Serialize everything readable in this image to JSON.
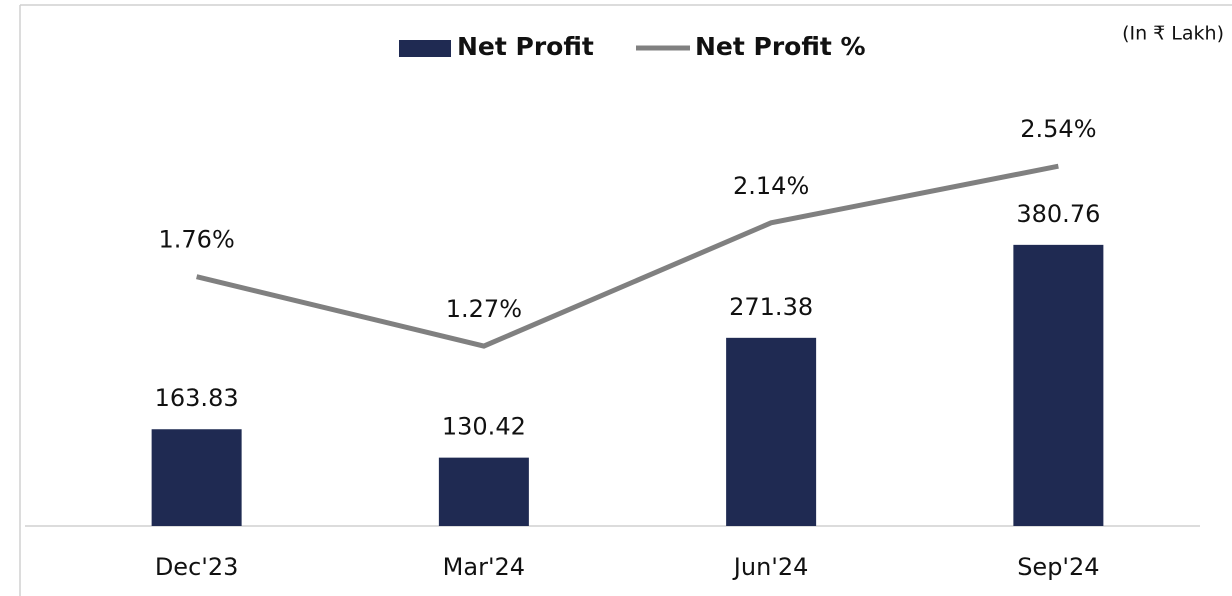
{
  "chart_data": {
    "type": "bar_line",
    "annotation": "(In ₹ Lakh)",
    "categories": [
      "Dec'23",
      "Mar'24",
      "Jun'24",
      "Sep'24"
    ],
    "series": [
      {
        "name": "Net Profit",
        "type": "bar",
        "color": "#1f2a52",
        "values": [
          163.83,
          130.42,
          271.38,
          380.76
        ]
      },
      {
        "name": "Net Profit %",
        "type": "line",
        "axis": "y2",
        "color": "#808080",
        "values": [
          1.76,
          1.27,
          2.14,
          2.54
        ],
        "value_labels": [
          "1.76%",
          "1.27%",
          "2.14%",
          "2.54%"
        ]
      }
    ],
    "ylim": [
      50,
      550
    ],
    "y2lim": [
      0,
      3
    ],
    "legend": "top"
  }
}
